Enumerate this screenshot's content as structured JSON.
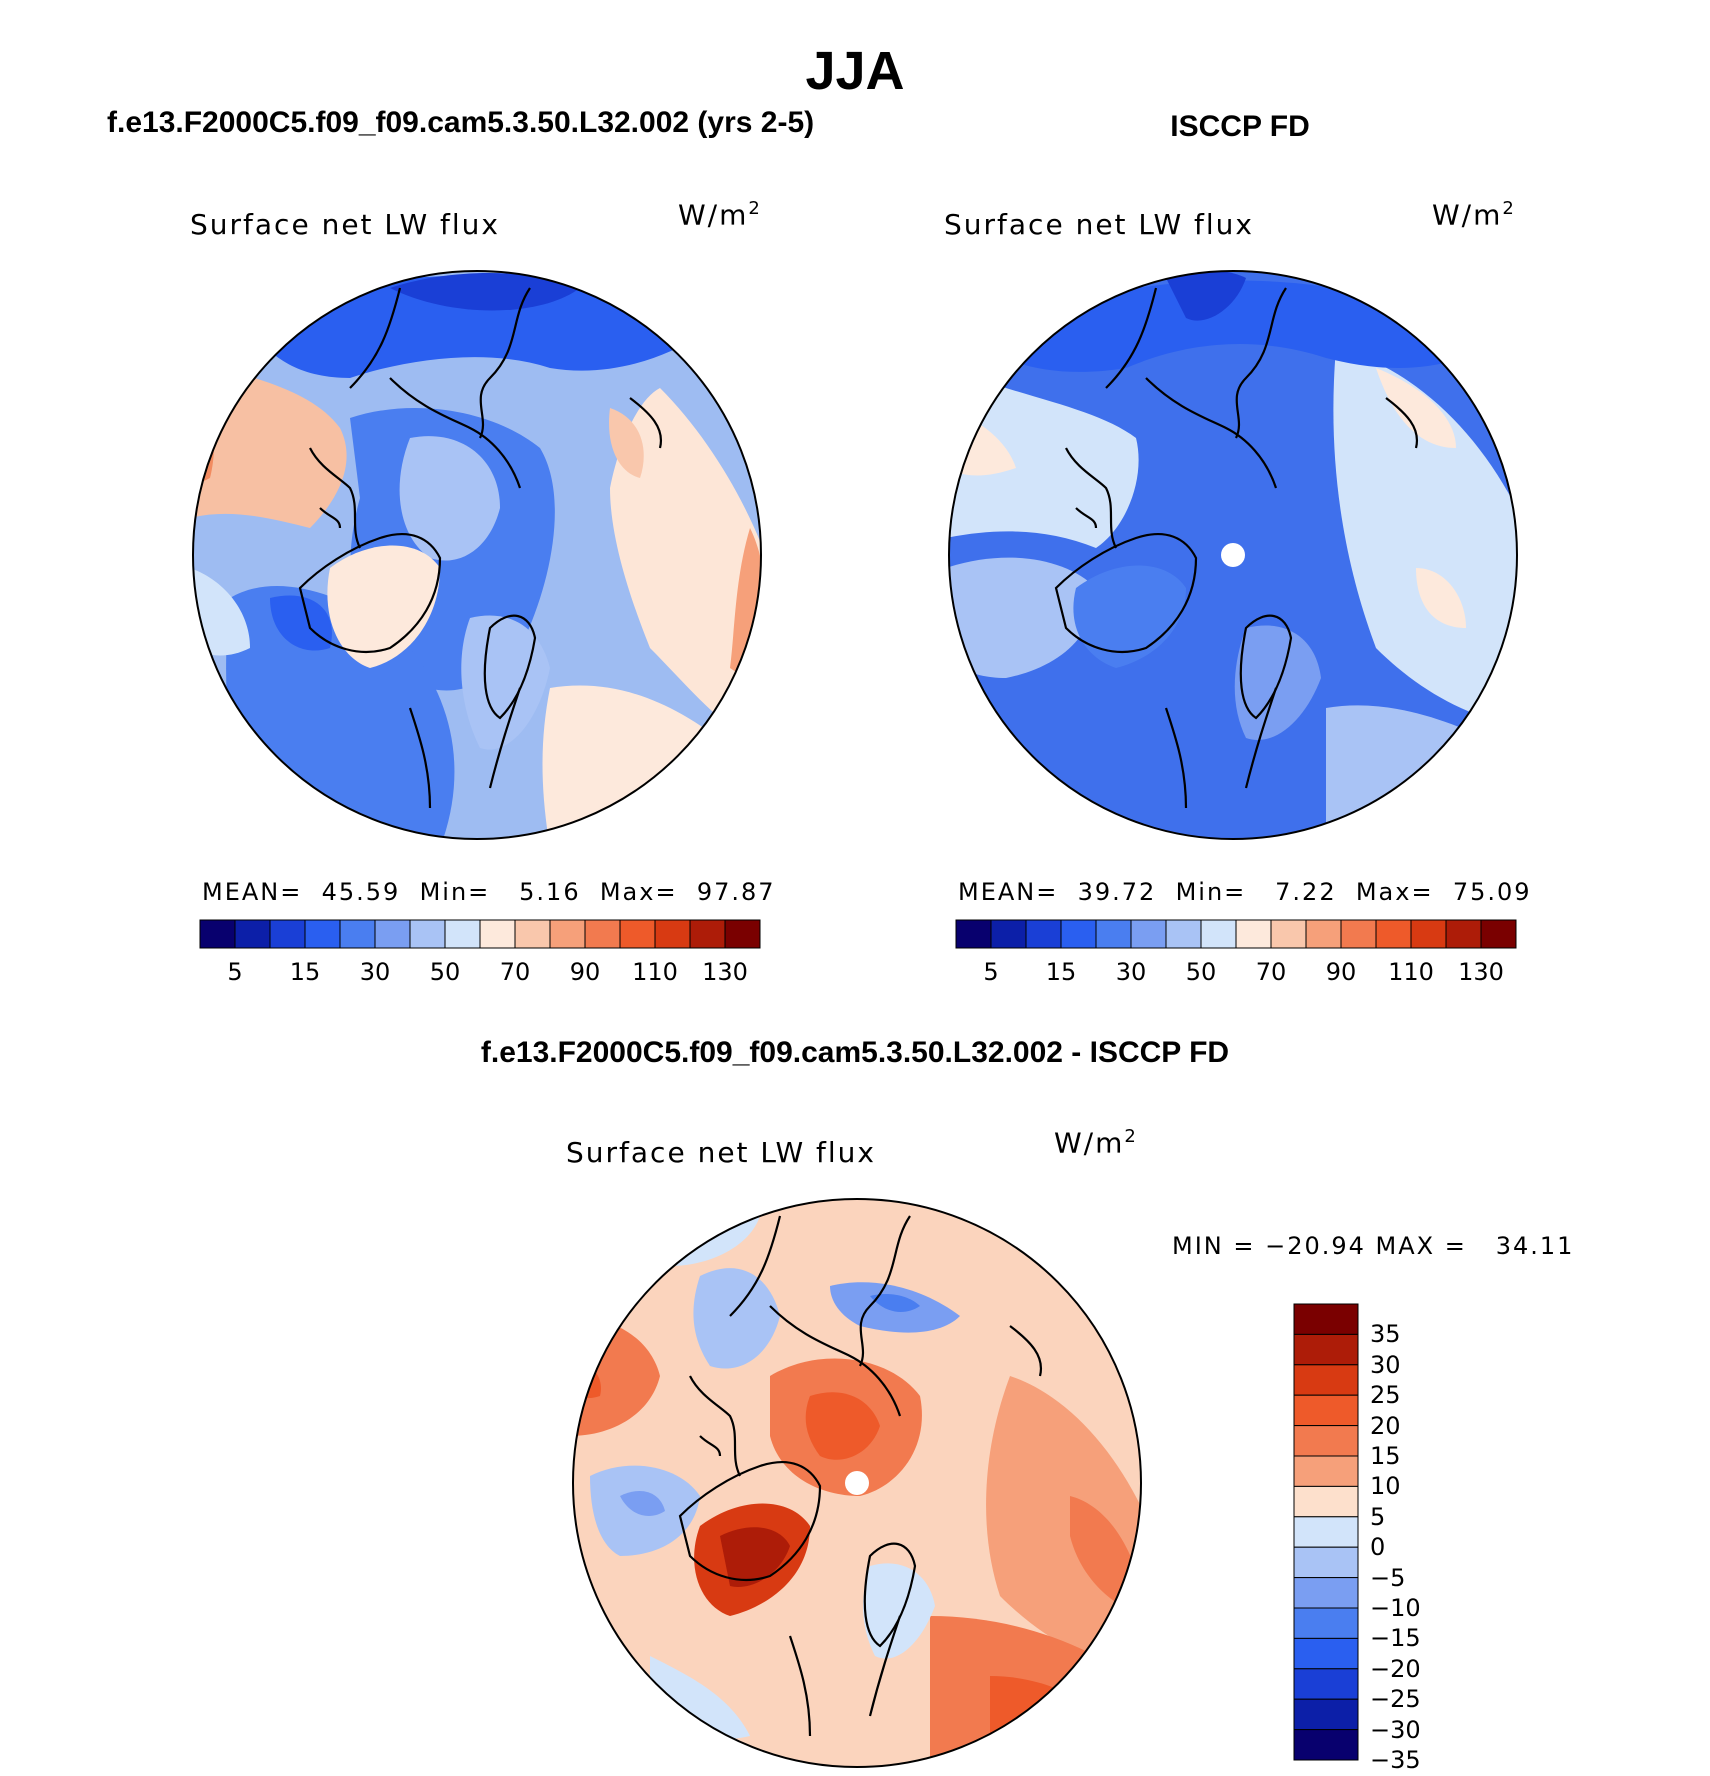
{
  "title": "JJA",
  "units_label": "W/m",
  "units_sup": "2",
  "panels": {
    "model": {
      "title": "f.e13.F2000C5.f09_f09.cam5.3.50.L32.002 (yrs 2-5)",
      "variable": "Surface net LW flux",
      "stats": "MEAN=  45.59  Min=   5.16  Max=  97.87"
    },
    "obs": {
      "title": "ISCCP FD",
      "variable": "Surface net LW flux",
      "stats": "MEAN=  39.72  Min=   7.22  Max=  75.09"
    },
    "diff": {
      "title": "f.e13.F2000C5.f09_f09.cam5.3.50.L32.002 - ISCCP FD",
      "variable": "Surface net LW flux",
      "stats": "MIN = −20.94 MAX =   34.11"
    }
  },
  "colorbar_main": {
    "colors": [
      "#08006e",
      "#0c1fa8",
      "#1a3fd6",
      "#2a5ff0",
      "#4a7ef0",
      "#7a9ef2",
      "#a9c3f5",
      "#d2e4fa",
      "#fde9dc",
      "#f9c7ac",
      "#f6a07a",
      "#f27a4f",
      "#ee5a2a",
      "#d83a12",
      "#ad1c08",
      "#7a0000"
    ],
    "labels": [
      "5",
      "15",
      "30",
      "50",
      "70",
      "90",
      "110",
      "130"
    ]
  },
  "colorbar_diff": {
    "colors": [
      "#7a0000",
      "#ad1c08",
      "#d83a12",
      "#ee5a2a",
      "#f27a4f",
      "#f6a07a",
      "#fde0cc",
      "#d2e4fa",
      "#a9c3f5",
      "#7a9ef2",
      "#4a7ef0",
      "#2a5ff0",
      "#1a3fd6",
      "#0c1fa8",
      "#08006e"
    ],
    "labels": [
      "35",
      "30",
      "25",
      "20",
      "15",
      "10",
      "5",
      "0",
      "−5",
      "−10",
      "−15",
      "−20",
      "−25",
      "−30",
      "−35"
    ]
  },
  "map_colors": {
    "model_base": "#9ebcf2",
    "obs_base": "#3f70ec",
    "diff_base": "#fbd4bd"
  }
}
